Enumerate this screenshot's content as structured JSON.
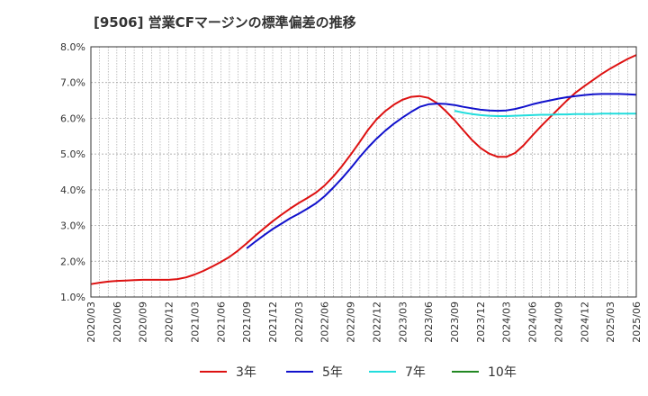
{
  "title": "[9506]  営業CFマージンの標準偏差の推移",
  "chart_data": {
    "type": "line",
    "ylim": [
      1.0,
      8.0
    ],
    "yticks": [
      1.0,
      2.0,
      3.0,
      4.0,
      5.0,
      6.0,
      7.0,
      8.0
    ],
    "ytick_labels": [
      "1.0%",
      "2.0%",
      "3.0%",
      "4.0%",
      "5.0%",
      "6.0%",
      "7.0%",
      "8.0%"
    ],
    "xtick_labels": [
      "2020/03",
      "2020/06",
      "2020/09",
      "2020/12",
      "2021/03",
      "2021/06",
      "2021/09",
      "2021/12",
      "2022/03",
      "2022/06",
      "2022/09",
      "2022/12",
      "2023/03",
      "2023/06",
      "2023/09",
      "2023/12",
      "2024/03",
      "2024/06",
      "2024/09",
      "2024/12",
      "2025/03",
      "2025/06"
    ],
    "grid": true,
    "legend_position": "bottom",
    "series": [
      {
        "name": "3年",
        "color": "#dd1111",
        "points": [
          [
            "2020/03",
            1.36
          ],
          [
            "2020/04",
            1.4
          ],
          [
            "2020/05",
            1.43
          ],
          [
            "2020/06",
            1.45
          ],
          [
            "2020/07",
            1.46
          ],
          [
            "2020/08",
            1.47
          ],
          [
            "2020/09",
            1.48
          ],
          [
            "2020/10",
            1.48
          ],
          [
            "2020/11",
            1.48
          ],
          [
            "2020/12",
            1.48
          ],
          [
            "2021/01",
            1.5
          ],
          [
            "2021/02",
            1.55
          ],
          [
            "2021/03",
            1.63
          ],
          [
            "2021/04",
            1.73
          ],
          [
            "2021/05",
            1.85
          ],
          [
            "2021/06",
            1.98
          ],
          [
            "2021/07",
            2.12
          ],
          [
            "2021/08",
            2.3
          ],
          [
            "2021/09",
            2.5
          ],
          [
            "2021/10",
            2.72
          ],
          [
            "2021/11",
            2.92
          ],
          [
            "2021/12",
            3.12
          ],
          [
            "2022/01",
            3.3
          ],
          [
            "2022/02",
            3.47
          ],
          [
            "2022/03",
            3.63
          ],
          [
            "2022/04",
            3.77
          ],
          [
            "2022/05",
            3.92
          ],
          [
            "2022/06",
            4.12
          ],
          [
            "2022/07",
            4.37
          ],
          [
            "2022/08",
            4.66
          ],
          [
            "2022/09",
            4.98
          ],
          [
            "2022/10",
            5.32
          ],
          [
            "2022/11",
            5.67
          ],
          [
            "2022/12",
            5.97
          ],
          [
            "2023/01",
            6.2
          ],
          [
            "2023/02",
            6.38
          ],
          [
            "2023/03",
            6.52
          ],
          [
            "2023/04",
            6.6
          ],
          [
            "2023/05",
            6.62
          ],
          [
            "2023/06",
            6.57
          ],
          [
            "2023/07",
            6.42
          ],
          [
            "2023/08",
            6.2
          ],
          [
            "2023/09",
            5.95
          ],
          [
            "2023/10",
            5.67
          ],
          [
            "2023/11",
            5.4
          ],
          [
            "2023/12",
            5.17
          ],
          [
            "2024/01",
            5.01
          ],
          [
            "2024/02",
            4.92
          ],
          [
            "2024/03",
            4.92
          ],
          [
            "2024/04",
            5.03
          ],
          [
            "2024/05",
            5.25
          ],
          [
            "2024/06",
            5.52
          ],
          [
            "2024/07",
            5.78
          ],
          [
            "2024/08",
            6.02
          ],
          [
            "2024/09",
            6.26
          ],
          [
            "2024/10",
            6.5
          ],
          [
            "2024/11",
            6.72
          ],
          [
            "2024/12",
            6.9
          ],
          [
            "2025/01",
            7.07
          ],
          [
            "2025/02",
            7.24
          ],
          [
            "2025/03",
            7.39
          ],
          [
            "2025/04",
            7.53
          ],
          [
            "2025/05",
            7.66
          ],
          [
            "2025/06",
            7.77
          ]
        ]
      },
      {
        "name": "5年",
        "color": "#1111cc",
        "points": [
          [
            "2021/09",
            2.36
          ],
          [
            "2021/10",
            2.55
          ],
          [
            "2021/11",
            2.73
          ],
          [
            "2021/12",
            2.9
          ],
          [
            "2022/01",
            3.05
          ],
          [
            "2022/02",
            3.2
          ],
          [
            "2022/03",
            3.33
          ],
          [
            "2022/04",
            3.47
          ],
          [
            "2022/05",
            3.62
          ],
          [
            "2022/06",
            3.82
          ],
          [
            "2022/07",
            4.06
          ],
          [
            "2022/08",
            4.32
          ],
          [
            "2022/09",
            4.6
          ],
          [
            "2022/10",
            4.9
          ],
          [
            "2022/11",
            5.18
          ],
          [
            "2022/12",
            5.43
          ],
          [
            "2023/01",
            5.65
          ],
          [
            "2023/02",
            5.85
          ],
          [
            "2023/03",
            6.02
          ],
          [
            "2023/04",
            6.18
          ],
          [
            "2023/05",
            6.32
          ],
          [
            "2023/06",
            6.39
          ],
          [
            "2023/07",
            6.41
          ],
          [
            "2023/08",
            6.4
          ],
          [
            "2023/09",
            6.37
          ],
          [
            "2023/10",
            6.32
          ],
          [
            "2023/11",
            6.28
          ],
          [
            "2023/12",
            6.24
          ],
          [
            "2024/01",
            6.22
          ],
          [
            "2024/02",
            6.21
          ],
          [
            "2024/03",
            6.22
          ],
          [
            "2024/04",
            6.26
          ],
          [
            "2024/05",
            6.32
          ],
          [
            "2024/06",
            6.39
          ],
          [
            "2024/07",
            6.45
          ],
          [
            "2024/08",
            6.5
          ],
          [
            "2024/09",
            6.55
          ],
          [
            "2024/10",
            6.59
          ],
          [
            "2024/11",
            6.62
          ],
          [
            "2024/12",
            6.65
          ],
          [
            "2025/01",
            6.67
          ],
          [
            "2025/02",
            6.68
          ],
          [
            "2025/03",
            6.68
          ],
          [
            "2025/04",
            6.68
          ],
          [
            "2025/05",
            6.67
          ],
          [
            "2025/06",
            6.66
          ]
        ]
      },
      {
        "name": "7年",
        "color": "#22dddd",
        "points": [
          [
            "2023/09",
            6.21
          ],
          [
            "2023/10",
            6.16
          ],
          [
            "2023/11",
            6.12
          ],
          [
            "2023/12",
            6.09
          ],
          [
            "2024/01",
            6.07
          ],
          [
            "2024/02",
            6.06
          ],
          [
            "2024/03",
            6.06
          ],
          [
            "2024/04",
            6.07
          ],
          [
            "2024/05",
            6.08
          ],
          [
            "2024/06",
            6.09
          ],
          [
            "2024/07",
            6.1
          ],
          [
            "2024/08",
            6.1
          ],
          [
            "2024/09",
            6.11
          ],
          [
            "2024/10",
            6.11
          ],
          [
            "2024/11",
            6.12
          ],
          [
            "2024/12",
            6.12
          ],
          [
            "2025/01",
            6.12
          ],
          [
            "2025/02",
            6.13
          ],
          [
            "2025/03",
            6.13
          ],
          [
            "2025/04",
            6.13
          ],
          [
            "2025/05",
            6.13
          ],
          [
            "2025/06",
            6.13
          ]
        ]
      },
      {
        "name": "10年",
        "color": "#228822",
        "points": []
      }
    ]
  }
}
